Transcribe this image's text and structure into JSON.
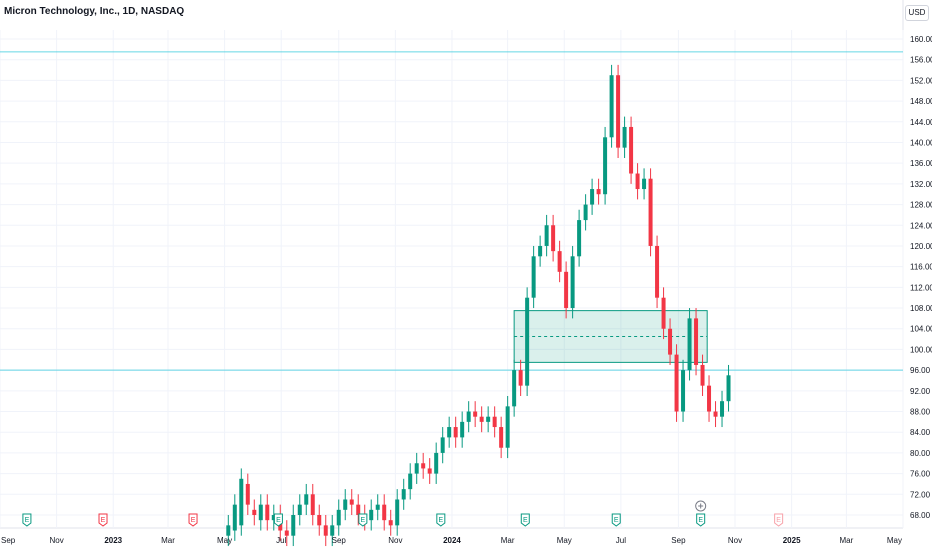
{
  "header": {
    "title": "Micron Technology, Inc., 1D, NASDAQ",
    "currency": "USD"
  },
  "chart_data": {
    "type": "candlestick",
    "title": "Micron Technology, Inc., 1D, NASDAQ",
    "ylim": [
      66,
      162
    ],
    "y_ticks": [
      "160.00",
      "156.00",
      "152.00",
      "148.00",
      "144.00",
      "140.00",
      "136.00",
      "132.00",
      "128.00",
      "124.00",
      "120.00",
      "116.00",
      "112.00",
      "108.00",
      "104.00",
      "100.00",
      "96.00",
      "92.00",
      "88.00",
      "84.00",
      "80.00",
      "76.00",
      "72.00",
      "68.00"
    ],
    "x_ticks": [
      {
        "label": "Sep",
        "bold": false
      },
      {
        "label": "Nov",
        "bold": false
      },
      {
        "label": "2023",
        "bold": true
      },
      {
        "label": "Mar",
        "bold": false
      },
      {
        "label": "May",
        "bold": false
      },
      {
        "label": "Jul",
        "bold": false
      },
      {
        "label": "Sep",
        "bold": false
      },
      {
        "label": "Nov",
        "bold": false
      },
      {
        "label": "2024",
        "bold": true
      },
      {
        "label": "Mar",
        "bold": false
      },
      {
        "label": "May",
        "bold": false
      },
      {
        "label": "Jul",
        "bold": false
      },
      {
        "label": "Sep",
        "bold": false
      },
      {
        "label": "Nov",
        "bold": false
      },
      {
        "label": "2025",
        "bold": true
      },
      {
        "label": "Mar",
        "bold": false
      },
      {
        "label": "May",
        "bold": false
      }
    ],
    "x_range": [
      "2022-09-01",
      "2025-05-01"
    ],
    "horizontal_lines": [
      157.5,
      96.0
    ],
    "zone": {
      "start": "2024-03-08",
      "end": "2024-10-02",
      "top": 107.5,
      "bottom": 97.5,
      "mid": 102.5
    },
    "earnings_markers": [
      {
        "date": "2022-09-30",
        "label": "E",
        "status": "past"
      },
      {
        "date": "2022-12-21",
        "label": "E",
        "status": "miss"
      },
      {
        "date": "2023-03-28",
        "label": "E",
        "status": "miss"
      },
      {
        "date": "2023-06-28",
        "label": "E",
        "status": "past"
      },
      {
        "date": "2023-09-27",
        "label": "E",
        "status": "past"
      },
      {
        "date": "2023-12-20",
        "label": "E",
        "status": "past"
      },
      {
        "date": "2024-03-20",
        "label": "E",
        "status": "past"
      },
      {
        "date": "2024-06-26",
        "label": "E",
        "status": "past"
      },
      {
        "date": "2024-09-25",
        "label": "E",
        "status": "past"
      },
      {
        "date": "2024-12-18",
        "label": "E",
        "status": "upcoming"
      }
    ],
    "plus_marker_date": "2024-09-25",
    "series": [
      [
        "2023-05-05",
        64,
        66
      ],
      [
        "2023-05-12",
        65,
        70
      ],
      [
        "2023-05-19",
        66,
        75
      ],
      [
        "2023-05-26",
        74,
        70
      ],
      [
        "2023-06-02",
        69,
        68
      ],
      [
        "2023-06-09",
        67,
        70
      ],
      [
        "2023-06-16",
        70,
        67
      ],
      [
        "2023-06-23",
        67,
        68
      ],
      [
        "2023-06-30",
        68,
        65
      ],
      [
        "2023-07-07",
        65,
        64
      ],
      [
        "2023-07-14",
        64,
        68
      ],
      [
        "2023-07-21",
        68,
        70
      ],
      [
        "2023-07-28",
        70,
        72
      ],
      [
        "2023-08-04",
        72,
        68
      ],
      [
        "2023-08-11",
        68,
        66
      ],
      [
        "2023-08-18",
        66,
        64
      ],
      [
        "2023-08-25",
        64,
        66
      ],
      [
        "2023-09-01",
        66,
        69
      ],
      [
        "2023-09-08",
        69,
        71
      ],
      [
        "2023-09-15",
        71,
        70
      ],
      [
        "2023-09-22",
        70,
        68
      ],
      [
        "2023-09-29",
        68,
        67
      ],
      [
        "2023-10-06",
        67,
        69
      ],
      [
        "2023-10-13",
        69,
        70
      ],
      [
        "2023-10-20",
        70,
        67
      ],
      [
        "2023-10-27",
        67,
        66
      ],
      [
        "2023-11-03",
        66,
        71
      ],
      [
        "2023-11-10",
        71,
        73
      ],
      [
        "2023-11-17",
        73,
        76
      ],
      [
        "2023-11-24",
        76,
        78
      ],
      [
        "2023-12-01",
        78,
        77
      ],
      [
        "2023-12-08",
        77,
        76
      ],
      [
        "2023-12-15",
        76,
        80
      ],
      [
        "2023-12-22",
        80,
        83
      ],
      [
        "2023-12-29",
        83,
        85
      ],
      [
        "2024-01-05",
        85,
        83
      ],
      [
        "2024-01-12",
        83,
        86
      ],
      [
        "2024-01-19",
        86,
        88
      ],
      [
        "2024-01-26",
        88,
        87
      ],
      [
        "2024-02-02",
        87,
        86
      ],
      [
        "2024-02-09",
        86,
        87
      ],
      [
        "2024-02-16",
        87,
        85
      ],
      [
        "2024-02-23",
        85,
        81
      ],
      [
        "2024-03-01",
        81,
        89
      ],
      [
        "2024-03-08",
        89,
        96
      ],
      [
        "2024-03-15",
        96,
        93
      ],
      [
        "2024-03-22",
        93,
        110
      ],
      [
        "2024-03-29",
        110,
        118
      ],
      [
        "2024-04-05",
        118,
        120
      ],
      [
        "2024-04-12",
        120,
        124
      ],
      [
        "2024-04-19",
        124,
        119
      ],
      [
        "2024-04-26",
        119,
        115
      ],
      [
        "2024-05-03",
        115,
        108
      ],
      [
        "2024-05-10",
        108,
        118
      ],
      [
        "2024-05-17",
        118,
        125
      ],
      [
        "2024-05-24",
        125,
        128
      ],
      [
        "2024-05-31",
        128,
        131
      ],
      [
        "2024-06-07",
        131,
        130
      ],
      [
        "2024-06-14",
        130,
        141
      ],
      [
        "2024-06-21",
        141,
        153
      ],
      [
        "2024-06-28",
        153,
        139
      ],
      [
        "2024-07-05",
        139,
        143
      ],
      [
        "2024-07-12",
        143,
        134
      ],
      [
        "2024-07-19",
        134,
        131
      ],
      [
        "2024-07-26",
        131,
        133
      ],
      [
        "2024-08-02",
        133,
        120
      ],
      [
        "2024-08-09",
        120,
        110
      ],
      [
        "2024-08-16",
        110,
        104
      ],
      [
        "2024-08-23",
        104,
        99
      ],
      [
        "2024-08-30",
        99,
        88
      ],
      [
        "2024-09-06",
        88,
        96
      ],
      [
        "2024-09-13",
        96,
        106
      ],
      [
        "2024-09-20",
        106,
        97
      ],
      [
        "2024-09-27",
        97,
        93
      ],
      [
        "2024-10-04",
        93,
        88
      ],
      [
        "2024-10-11",
        88,
        87
      ],
      [
        "2024-10-18",
        87,
        90
      ],
      [
        "2024-10-25",
        90,
        95
      ]
    ]
  }
}
